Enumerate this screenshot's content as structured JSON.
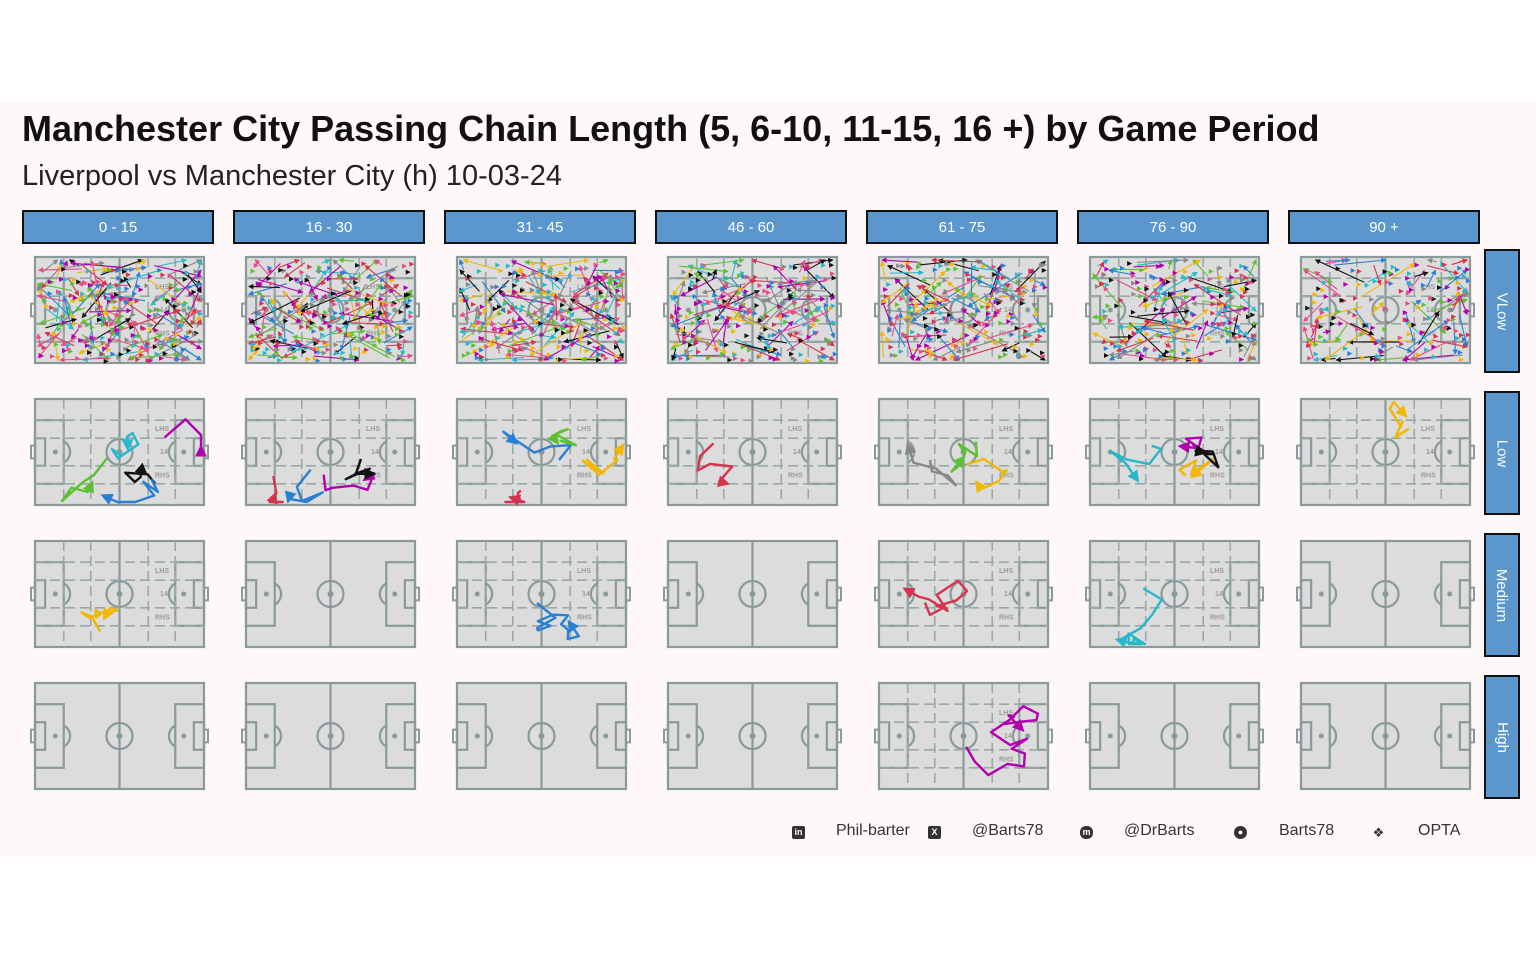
{
  "header": {
    "title": "Manchester City Passing Chain Length (5, 6-10, 11-15, 16 +) by Game Period",
    "subtitle": "Liverpool vs Manchester City (h) 10-03-24"
  },
  "colors": {
    "strip": "#5b97cc",
    "pitch_fill": "#dcdcdc",
    "pitch_line": "#8a9a9a",
    "panel_bg": "#fff8f8"
  },
  "chart_data": {
    "type": "facet-pitch-passmap",
    "columns": [
      "0 - 15",
      "16 - 30",
      "31 - 45",
      "46 - 60",
      "61 - 75",
      "76 - 90",
      "90 +"
    ],
    "rows": [
      "VLow",
      "Low",
      "Medium",
      "High"
    ],
    "pitch_labels": {
      "left_half_space": "LHS",
      "centre": "14",
      "right_half_space": "RHS"
    },
    "palette": [
      "#2a7fd4",
      "#d6344e",
      "#27b8c9",
      "#b200b0",
      "#f2b705",
      "#5cc12e",
      "#888888",
      "#111111",
      "#e84a8a"
    ],
    "cells": [
      {
        "col": 0,
        "row": 0,
        "kind": "dense",
        "chains": 34
      },
      {
        "col": 1,
        "row": 0,
        "kind": "dense",
        "chains": 32
      },
      {
        "col": 2,
        "row": 0,
        "kind": "dense",
        "chains": 33
      },
      {
        "col": 3,
        "row": 0,
        "kind": "dense",
        "chains": 30
      },
      {
        "col": 4,
        "row": 0,
        "kind": "dense",
        "chains": 28
      },
      {
        "col": 5,
        "row": 0,
        "kind": "dense",
        "chains": 26
      },
      {
        "col": 6,
        "row": 0,
        "kind": "dense",
        "chains": 22
      },
      {
        "col": 0,
        "row": 1,
        "kind": "chains",
        "colors": [
          "#5cc12e",
          "#111111",
          "#2a7fd4",
          "#27b8c9",
          "#b200b0"
        ]
      },
      {
        "col": 1,
        "row": 1,
        "kind": "chains",
        "colors": [
          "#b200b0",
          "#111111",
          "#2a7fd4",
          "#d6344e"
        ]
      },
      {
        "col": 2,
        "row": 1,
        "kind": "chains",
        "colors": [
          "#f2b705",
          "#d6344e",
          "#2a7fd4",
          "#5cc12e"
        ]
      },
      {
        "col": 3,
        "row": 1,
        "kind": "chains",
        "colors": [
          "#d6344e"
        ]
      },
      {
        "col": 4,
        "row": 1,
        "kind": "chains",
        "colors": [
          "#888888",
          "#5cc12e",
          "#f2b705"
        ]
      },
      {
        "col": 5,
        "row": 1,
        "kind": "chains",
        "colors": [
          "#b200b0",
          "#f2b705",
          "#111111",
          "#27b8c9"
        ]
      },
      {
        "col": 6,
        "row": 1,
        "kind": "chains",
        "colors": [
          "#f2b705"
        ]
      },
      {
        "col": 0,
        "row": 2,
        "kind": "chains",
        "colors": [
          "#f2b705"
        ]
      },
      {
        "col": 1,
        "row": 2,
        "kind": "empty"
      },
      {
        "col": 2,
        "row": 2,
        "kind": "chains",
        "colors": [
          "#2a7fd4"
        ]
      },
      {
        "col": 3,
        "row": 2,
        "kind": "empty"
      },
      {
        "col": 4,
        "row": 2,
        "kind": "chains",
        "colors": [
          "#d6344e"
        ]
      },
      {
        "col": 5,
        "row": 2,
        "kind": "chains",
        "colors": [
          "#27b8c9"
        ]
      },
      {
        "col": 6,
        "row": 2,
        "kind": "empty"
      },
      {
        "col": 0,
        "row": 3,
        "kind": "empty"
      },
      {
        "col": 1,
        "row": 3,
        "kind": "empty"
      },
      {
        "col": 2,
        "row": 3,
        "kind": "empty"
      },
      {
        "col": 3,
        "row": 3,
        "kind": "empty"
      },
      {
        "col": 4,
        "row": 3,
        "kind": "chains",
        "colors": [
          "#b200b0"
        ]
      },
      {
        "col": 5,
        "row": 3,
        "kind": "empty"
      },
      {
        "col": 6,
        "row": 3,
        "kind": "empty"
      }
    ]
  },
  "footer": {
    "items": [
      {
        "icon": "linkedin-icon",
        "label": "Phil-barter"
      },
      {
        "icon": "x-twitter-icon",
        "label": "@Barts78"
      },
      {
        "icon": "mastodon-icon",
        "label": "@DrBarts"
      },
      {
        "icon": "github-icon",
        "label": "Barts78"
      },
      {
        "icon": "dropbox-icon",
        "label": "OPTA"
      }
    ]
  }
}
